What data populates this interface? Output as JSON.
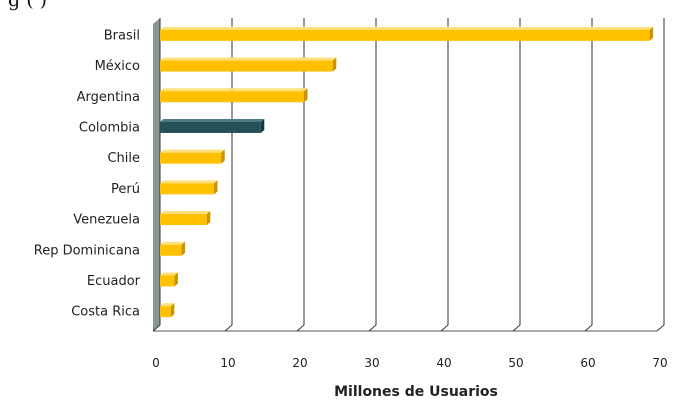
{
  "chart_data": {
    "type": "bar",
    "orientation": "horizontal",
    "title_partial": "g                                              (           )",
    "categories": [
      "Brasil",
      "México",
      "Argentina",
      "Colombia",
      "Chile",
      "Perú",
      "Venezuela",
      "Rep Dominicana",
      "Ecuador",
      "Costa Rica"
    ],
    "values": [
      68,
      24,
      20,
      14,
      8.5,
      7.5,
      6.5,
      3,
      2,
      1.5
    ],
    "highlight": "Colombia",
    "xlabel": "Millones de Usuarios",
    "ylabel": "",
    "xlim": [
      0,
      70
    ],
    "xticks": [
      0,
      10,
      20,
      30,
      40,
      50,
      60,
      70
    ],
    "grid": true,
    "colors": {
      "bar": "#FFC000",
      "bar_top": "#FFE07A",
      "bar_side": "#C99400",
      "highlight": "#24505A",
      "highlight_top": "#4F7A84",
      "highlight_side": "#163840",
      "wall": "#8C9596",
      "grid": "#333333"
    }
  }
}
